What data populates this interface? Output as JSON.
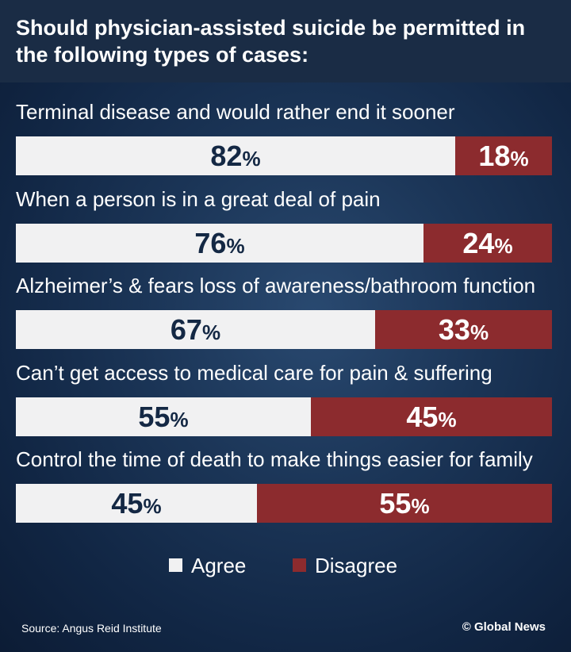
{
  "title": "Should physician-assisted suicide be permitted in the following types of cases:",
  "chart_data": {
    "type": "bar",
    "stacked": true,
    "orientation": "horizontal",
    "unit": "%",
    "categories": [
      "Terminal disease and would rather end it sooner",
      "When a person is in a great deal of pain",
      "Alzheimer’s & fears loss of awareness/bathroom function",
      "Can’t get access to medical care for pain & suffering",
      "Control the time of death to make things easier for family"
    ],
    "series": [
      {
        "name": "Agree",
        "color": "#f1f1f2",
        "values": [
          82,
          76,
          67,
          55,
          45
        ]
      },
      {
        "name": "Disagree",
        "color": "#8c2b2e",
        "values": [
          18,
          24,
          33,
          45,
          55
        ]
      }
    ],
    "legend_position": "bottom-center"
  },
  "footer": {
    "source": "Source: Angus Reid Institute",
    "credit": "© Global News"
  }
}
